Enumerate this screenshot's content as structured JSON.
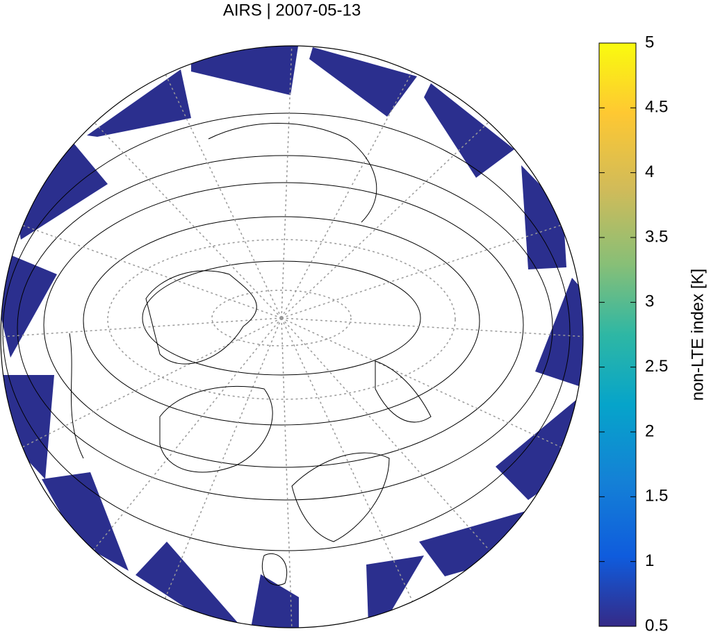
{
  "title": "AIRS | 2007-05-13",
  "colorbar": {
    "label": "non-LTE index [K]",
    "lim": [
      0.5,
      5
    ],
    "ticks": [
      0.5,
      1,
      1.5,
      2,
      2.5,
      3,
      3.5,
      4,
      4.5,
      5
    ]
  }
}
